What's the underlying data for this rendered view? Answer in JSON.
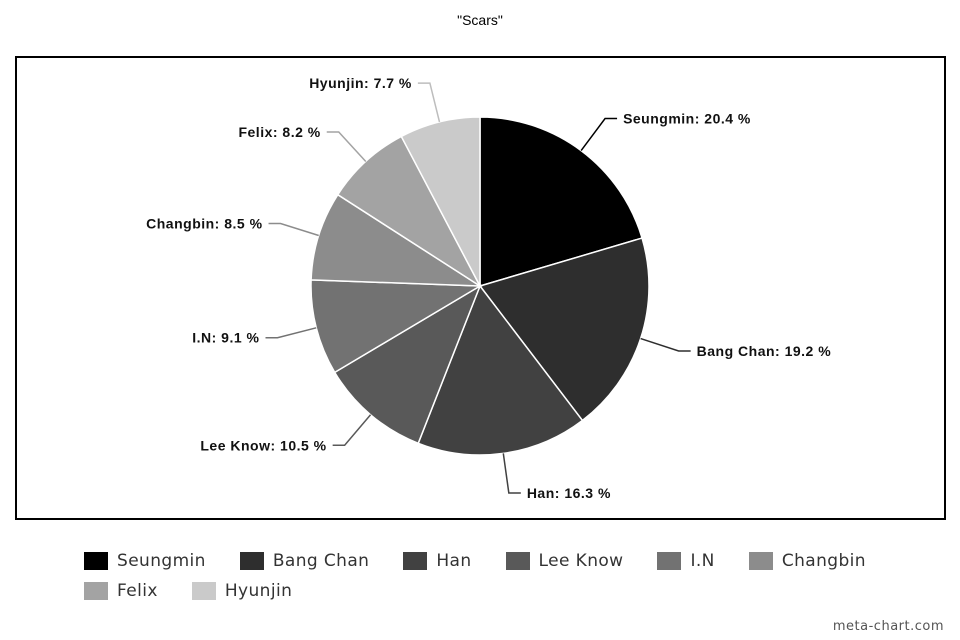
{
  "chart_data": {
    "type": "pie",
    "title": "\"Scars\"",
    "slices": [
      {
        "label": "Seungmin",
        "value": 20.4,
        "display": "Seungmin: 20.4 %",
        "color": "#000000"
      },
      {
        "label": "Bang Chan",
        "value": 19.2,
        "display": "Bang Chan: 19.2 %",
        "color": "#2e2e2e"
      },
      {
        "label": "Han",
        "value": 16.3,
        "display": "Han: 16.3 %",
        "color": "#414141"
      },
      {
        "label": "Lee Know",
        "value": 10.5,
        "display": "Lee Know: 10.5 %",
        "color": "#595959"
      },
      {
        "label": "I.N",
        "value": 9.1,
        "display": "I.N: 9.1 %",
        "color": "#727272"
      },
      {
        "label": "Changbin",
        "value": 8.5,
        "display": "Changbin: 8.5 %",
        "color": "#8c8c8c"
      },
      {
        "label": "Felix",
        "value": 8.2,
        "display": "Felix: 8.2 %",
        "color": "#a3a3a3"
      },
      {
        "label": "Hyunjin",
        "value": 7.7,
        "display": "Hyunjin: 7.7 %",
        "color": "#cacaca"
      }
    ],
    "legend_position": "bottom",
    "legend": [
      "Seungmin",
      "Bang Chan",
      "Han",
      "Lee Know",
      "I.N",
      "Changbin",
      "Felix",
      "Hyunjin"
    ]
  },
  "watermark": "meta-chart.com"
}
